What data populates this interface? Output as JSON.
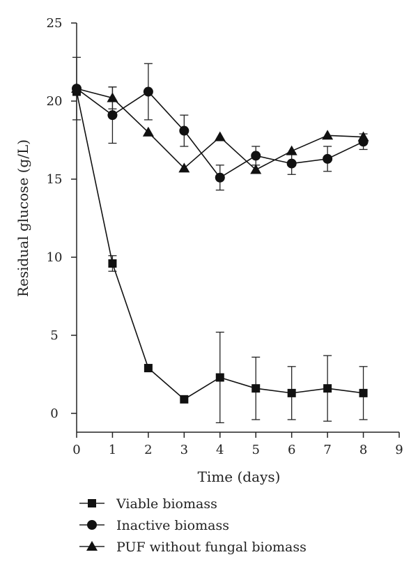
{
  "chart_data": {
    "type": "line",
    "title": "",
    "xlabel": "Time (days)",
    "ylabel": "Residual glucose (g/L)",
    "xlim": [
      0,
      9
    ],
    "ylim": [
      0,
      25
    ],
    "xticks": [
      0,
      1,
      2,
      3,
      4,
      5,
      6,
      7,
      8,
      9
    ],
    "yticks": [
      0,
      5,
      10,
      15,
      20,
      25
    ],
    "grid": false,
    "legend_position": "bottom",
    "series": [
      {
        "name": "Viable biomass",
        "marker": "square",
        "color": "#111111",
        "x": [
          0,
          1,
          2,
          3,
          4,
          5,
          6,
          7,
          8
        ],
        "y": [
          20.6,
          9.6,
          2.9,
          0.9,
          2.3,
          1.6,
          1.3,
          1.6,
          1.3
        ],
        "err": [
          0,
          0.5,
          0,
          0,
          2.9,
          2.0,
          1.7,
          2.1,
          1.7
        ]
      },
      {
        "name": "Inactive biomass",
        "marker": "circle",
        "color": "#111111",
        "x": [
          0,
          1,
          2,
          3,
          4,
          5,
          6,
          7,
          8
        ],
        "y": [
          20.8,
          19.1,
          20.6,
          18.1,
          15.1,
          16.5,
          16.0,
          16.3,
          17.4
        ],
        "err": [
          2.0,
          1.8,
          1.8,
          1.0,
          0.8,
          0.6,
          0.7,
          0.8,
          0.5
        ]
      },
      {
        "name": "PUF without fungal biomass",
        "marker": "triangle",
        "color": "#111111",
        "x": [
          0,
          1,
          2,
          3,
          4,
          5,
          6,
          7,
          8
        ],
        "y": [
          20.8,
          20.2,
          18.0,
          15.7,
          17.7,
          15.6,
          16.8,
          17.8,
          17.7
        ],
        "err": [
          0,
          0.7,
          0,
          0,
          0,
          0,
          0,
          0,
          0
        ]
      }
    ]
  }
}
